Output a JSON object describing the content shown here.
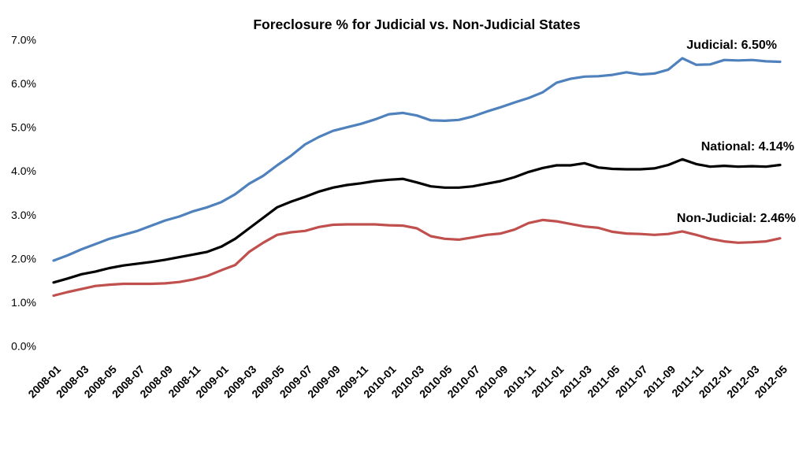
{
  "title": "Foreclosure % for Judicial vs. Non-Judicial States",
  "chart_data": {
    "type": "line",
    "title": "Foreclosure % for Judicial vs. Non-Judicial States",
    "xlabel": "",
    "ylabel": "",
    "ylim": [
      0,
      7
    ],
    "grid": false,
    "legend": "end-of-line colored labels",
    "y_tick_labels": [
      "7.0%",
      "6.0%",
      "5.0%",
      "4.0%",
      "3.0%",
      "2.0%",
      "1.0%",
      "0.0%"
    ],
    "x": [
      "2008-01",
      "2008-02",
      "2008-03",
      "2008-04",
      "2008-05",
      "2008-06",
      "2008-07",
      "2008-08",
      "2008-09",
      "2008-10",
      "2008-11",
      "2008-12",
      "2009-01",
      "2009-02",
      "2009-03",
      "2009-04",
      "2009-05",
      "2009-06",
      "2009-07",
      "2009-08",
      "2009-09",
      "2009-10",
      "2009-11",
      "2009-12",
      "2010-01",
      "2010-02",
      "2010-03",
      "2010-04",
      "2010-05",
      "2010-06",
      "2010-07",
      "2010-08",
      "2010-09",
      "2010-10",
      "2010-11",
      "2010-12",
      "2011-01",
      "2011-02",
      "2011-03",
      "2011-04",
      "2011-05",
      "2011-06",
      "2011-07",
      "2011-08",
      "2011-09",
      "2011-10",
      "2011-11",
      "2011-12",
      "2012-01",
      "2012-02",
      "2012-03",
      "2012-04",
      "2012-05"
    ],
    "x_tick_labels": [
      "2008-01",
      "2008-03",
      "2008-05",
      "2008-07",
      "2008-09",
      "2008-11",
      "2009-01",
      "2009-03",
      "2009-05",
      "2009-07",
      "2009-09",
      "2009-11",
      "2010-01",
      "2010-03",
      "2010-05",
      "2010-07",
      "2010-09",
      "2010-11",
      "2011-01",
      "2011-03",
      "2011-05",
      "2011-07",
      "2011-09",
      "2011-11",
      "2012-01",
      "2012-03",
      "2012-05"
    ],
    "series": [
      {
        "name": "Judicial",
        "end_label": "Judicial: 6.50%",
        "final_value": "6.50%",
        "color": "#4F81BD",
        "values": [
          1.95,
          2.07,
          2.21,
          2.33,
          2.45,
          2.54,
          2.63,
          2.75,
          2.87,
          2.96,
          3.08,
          3.17,
          3.29,
          3.47,
          3.71,
          3.89,
          4.13,
          4.35,
          4.61,
          4.78,
          4.92,
          5.0,
          5.08,
          5.18,
          5.3,
          5.33,
          5.27,
          5.16,
          5.15,
          5.17,
          5.25,
          5.36,
          5.46,
          5.57,
          5.67,
          5.8,
          6.02,
          6.11,
          6.16,
          6.17,
          6.2,
          6.26,
          6.21,
          6.23,
          6.32,
          6.58,
          6.43,
          6.44,
          6.54,
          6.53,
          6.54,
          6.51,
          6.5
        ]
      },
      {
        "name": "National",
        "end_label": "National: 4.14%",
        "final_value": "4.14%",
        "color": "#000000",
        "values": [
          1.45,
          1.54,
          1.64,
          1.7,
          1.78,
          1.84,
          1.88,
          1.92,
          1.97,
          2.03,
          2.09,
          2.15,
          2.27,
          2.45,
          2.69,
          2.93,
          3.17,
          3.3,
          3.41,
          3.53,
          3.62,
          3.68,
          3.72,
          3.77,
          3.8,
          3.82,
          3.74,
          3.65,
          3.62,
          3.62,
          3.65,
          3.71,
          3.77,
          3.86,
          3.98,
          4.07,
          4.13,
          4.13,
          4.18,
          4.08,
          4.05,
          4.04,
          4.04,
          4.06,
          4.14,
          4.27,
          4.16,
          4.1,
          4.12,
          4.1,
          4.11,
          4.1,
          4.14
        ]
      },
      {
        "name": "Non-Judicial",
        "end_label": "Non-Judicial: 2.46%",
        "final_value": "2.46%",
        "color": "#C0504D",
        "values": [
          1.15,
          1.23,
          1.3,
          1.37,
          1.4,
          1.42,
          1.42,
          1.42,
          1.43,
          1.46,
          1.52,
          1.6,
          1.73,
          1.85,
          2.15,
          2.36,
          2.54,
          2.6,
          2.63,
          2.72,
          2.77,
          2.78,
          2.78,
          2.78,
          2.76,
          2.75,
          2.69,
          2.51,
          2.45,
          2.43,
          2.48,
          2.54,
          2.57,
          2.66,
          2.81,
          2.88,
          2.85,
          2.79,
          2.73,
          2.7,
          2.61,
          2.57,
          2.56,
          2.54,
          2.56,
          2.62,
          2.54,
          2.45,
          2.39,
          2.36,
          2.37,
          2.39,
          2.46
        ]
      }
    ]
  }
}
